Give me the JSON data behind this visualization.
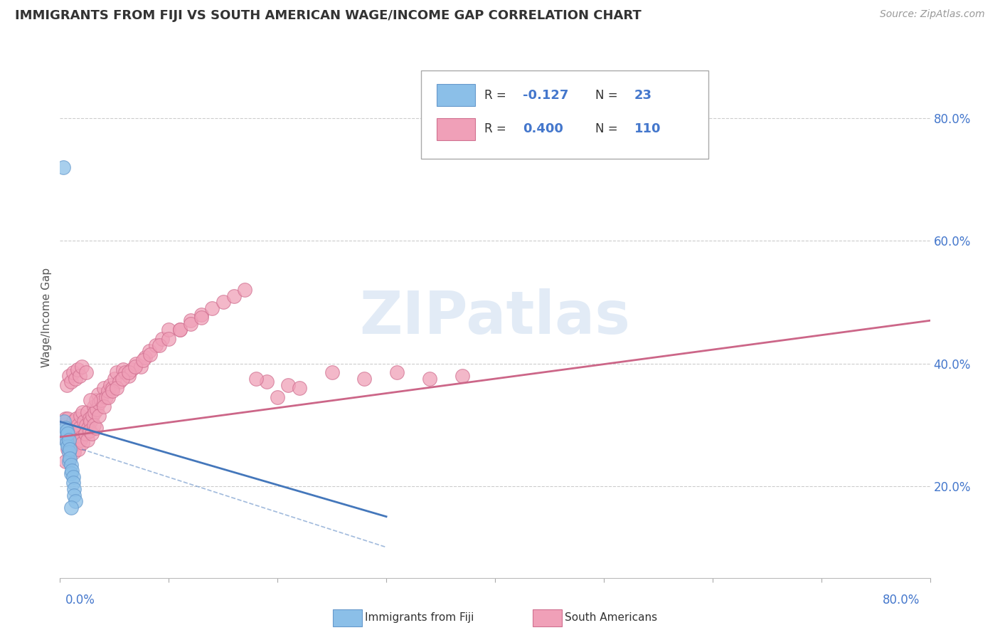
{
  "title": "IMMIGRANTS FROM FIJI VS SOUTH AMERICAN WAGE/INCOME GAP CORRELATION CHART",
  "source": "Source: ZipAtlas.com",
  "ylabel": "Wage/Income Gap",
  "xlim": [
    0.0,
    0.8
  ],
  "ylim": [
    0.05,
    0.9
  ],
  "yticks": [
    0.2,
    0.4,
    0.6,
    0.8
  ],
  "fiji_color": "#8bbfe8",
  "fiji_edge": "#6699cc",
  "sa_color": "#f0a0b8",
  "sa_edge": "#d07090",
  "trend_fiji_color": "#4477bb",
  "trend_sa_color": "#cc6688",
  "background_color": "#ffffff",
  "watermark_text": "ZIPatlas",
  "fiji_R": -0.127,
  "fiji_N": 23,
  "sa_R": 0.4,
  "sa_N": 110,
  "fiji_x": [
    0.003,
    0.004,
    0.004,
    0.005,
    0.005,
    0.006,
    0.006,
    0.007,
    0.007,
    0.008,
    0.008,
    0.008,
    0.009,
    0.009,
    0.01,
    0.01,
    0.011,
    0.012,
    0.012,
    0.013,
    0.013,
    0.014,
    0.01
  ],
  "fiji_y": [
    0.72,
    0.305,
    0.285,
    0.295,
    0.275,
    0.29,
    0.27,
    0.285,
    0.265,
    0.275,
    0.255,
    0.24,
    0.26,
    0.245,
    0.235,
    0.22,
    0.225,
    0.215,
    0.205,
    0.195,
    0.185,
    0.175,
    0.165
  ],
  "sa_x": [
    0.003,
    0.004,
    0.005,
    0.006,
    0.007,
    0.008,
    0.009,
    0.01,
    0.011,
    0.012,
    0.013,
    0.014,
    0.015,
    0.016,
    0.017,
    0.018,
    0.019,
    0.02,
    0.021,
    0.022,
    0.023,
    0.024,
    0.025,
    0.026,
    0.027,
    0.028,
    0.03,
    0.031,
    0.032,
    0.033,
    0.034,
    0.035,
    0.036,
    0.038,
    0.04,
    0.042,
    0.044,
    0.046,
    0.048,
    0.05,
    0.052,
    0.055,
    0.058,
    0.06,
    0.063,
    0.066,
    0.07,
    0.074,
    0.078,
    0.082,
    0.088,
    0.094,
    0.1,
    0.11,
    0.12,
    0.13,
    0.14,
    0.15,
    0.16,
    0.17,
    0.005,
    0.007,
    0.009,
    0.011,
    0.013,
    0.015,
    0.017,
    0.019,
    0.021,
    0.023,
    0.025,
    0.027,
    0.029,
    0.031,
    0.033,
    0.036,
    0.04,
    0.044,
    0.048,
    0.052,
    0.057,
    0.063,
    0.069,
    0.076,
    0.083,
    0.091,
    0.1,
    0.11,
    0.12,
    0.13,
    0.006,
    0.008,
    0.01,
    0.012,
    0.014,
    0.016,
    0.018,
    0.02,
    0.024,
    0.028,
    0.19,
    0.18,
    0.2,
    0.21,
    0.22,
    0.25,
    0.28,
    0.31,
    0.34,
    0.37
  ],
  "sa_y": [
    0.3,
    0.28,
    0.31,
    0.29,
    0.31,
    0.285,
    0.275,
    0.295,
    0.28,
    0.305,
    0.28,
    0.29,
    0.31,
    0.285,
    0.3,
    0.295,
    0.315,
    0.28,
    0.32,
    0.305,
    0.285,
    0.3,
    0.32,
    0.295,
    0.31,
    0.305,
    0.315,
    0.33,
    0.32,
    0.34,
    0.325,
    0.35,
    0.335,
    0.34,
    0.36,
    0.345,
    0.355,
    0.365,
    0.36,
    0.375,
    0.385,
    0.37,
    0.39,
    0.385,
    0.38,
    0.39,
    0.4,
    0.395,
    0.41,
    0.42,
    0.43,
    0.44,
    0.455,
    0.455,
    0.47,
    0.48,
    0.49,
    0.5,
    0.51,
    0.52,
    0.24,
    0.26,
    0.245,
    0.265,
    0.255,
    0.27,
    0.26,
    0.275,
    0.27,
    0.285,
    0.275,
    0.29,
    0.285,
    0.3,
    0.295,
    0.315,
    0.33,
    0.345,
    0.355,
    0.36,
    0.375,
    0.385,
    0.395,
    0.405,
    0.415,
    0.43,
    0.44,
    0.455,
    0.465,
    0.475,
    0.365,
    0.38,
    0.37,
    0.385,
    0.375,
    0.39,
    0.38,
    0.395,
    0.385,
    0.34,
    0.37,
    0.375,
    0.345,
    0.365,
    0.36,
    0.385,
    0.375,
    0.385,
    0.375,
    0.38
  ],
  "sa_trend_x0": 0.0,
  "sa_trend_y0": 0.28,
  "sa_trend_x1": 0.8,
  "sa_trend_y1": 0.47,
  "fiji_trend_x0": 0.0,
  "fiji_trend_y0": 0.305,
  "fiji_trend_x1": 0.3,
  "fiji_trend_y1": 0.15,
  "fiji_trend_dash_x0": 0.02,
  "fiji_trend_dash_y0": 0.26,
  "fiji_trend_dash_x1": 0.3,
  "fiji_trend_dash_y1": 0.1
}
